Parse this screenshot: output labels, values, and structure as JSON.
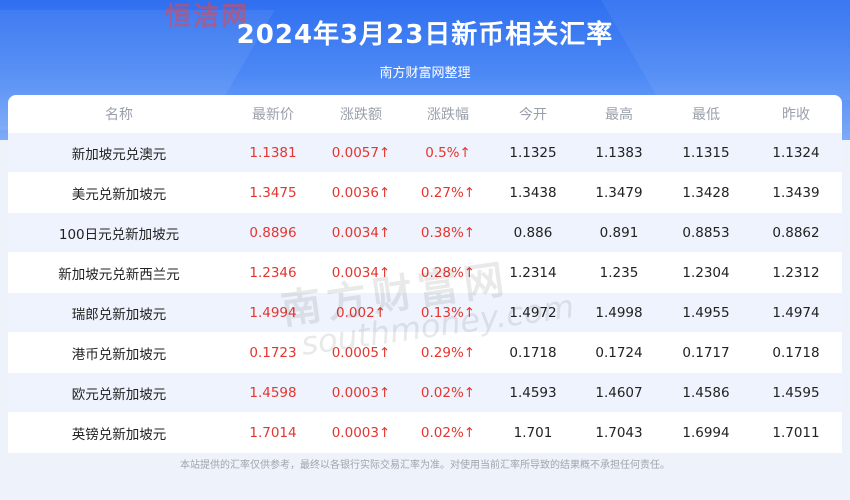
{
  "header": {
    "logo_text": "恒洁网",
    "title": "2024年3月23日新币相关汇率",
    "subtitle": "南方财富网整理"
  },
  "table": {
    "columns": [
      "名称",
      "最新价",
      "涨跌额",
      "涨跌幅",
      "今开",
      "最高",
      "最低",
      "昨收"
    ],
    "rows": [
      {
        "name": "新加坡元兑澳元",
        "last": "1.1381",
        "change": "0.0057↑",
        "pct": "0.5%↑",
        "open": "1.1325",
        "high": "1.1383",
        "low": "1.1315",
        "prev": "1.1324"
      },
      {
        "name": "美元兑新加坡元",
        "last": "1.3475",
        "change": "0.0036↑",
        "pct": "0.27%↑",
        "open": "1.3438",
        "high": "1.3479",
        "low": "1.3428",
        "prev": "1.3439"
      },
      {
        "name": "100日元兑新加坡元",
        "last": "0.8896",
        "change": "0.0034↑",
        "pct": "0.38%↑",
        "open": "0.886",
        "high": "0.891",
        "low": "0.8853",
        "prev": "0.8862"
      },
      {
        "name": "新加坡元兑新西兰元",
        "last": "1.2346",
        "change": "0.0034↑",
        "pct": "0.28%↑",
        "open": "1.2314",
        "high": "1.235",
        "low": "1.2304",
        "prev": "1.2312"
      },
      {
        "name": "瑞郎兑新加坡元",
        "last": "1.4994",
        "change": "0.002↑",
        "pct": "0.13%↑",
        "open": "1.4972",
        "high": "1.4998",
        "low": "1.4955",
        "prev": "1.4974"
      },
      {
        "name": "港币兑新加坡元",
        "last": "0.1723",
        "change": "0.0005↑",
        "pct": "0.29%↑",
        "open": "0.1718",
        "high": "0.1724",
        "low": "0.1717",
        "prev": "0.1718"
      },
      {
        "name": "欧元兑新加坡元",
        "last": "1.4598",
        "change": "0.0003↑",
        "pct": "0.02%↑",
        "open": "1.4593",
        "high": "1.4607",
        "low": "1.4586",
        "prev": "1.4595"
      },
      {
        "name": "英镑兑新加坡元",
        "last": "1.7014",
        "change": "0.0003↑",
        "pct": "0.02%↑",
        "open": "1.701",
        "high": "1.7043",
        "low": "1.6994",
        "prev": "1.7011"
      }
    ]
  },
  "watermark": {
    "line1": "南方财富网",
    "line2": "southmoney.com"
  },
  "footer": "本站提供的汇率仅供参考，最终以各银行实际交易汇率为准。对使用当前汇率所导致的结果概不承担任何责任。",
  "colors": {
    "up": "#e5352f",
    "header": "#2f6ff0",
    "row_alt": "#eef3fd"
  }
}
